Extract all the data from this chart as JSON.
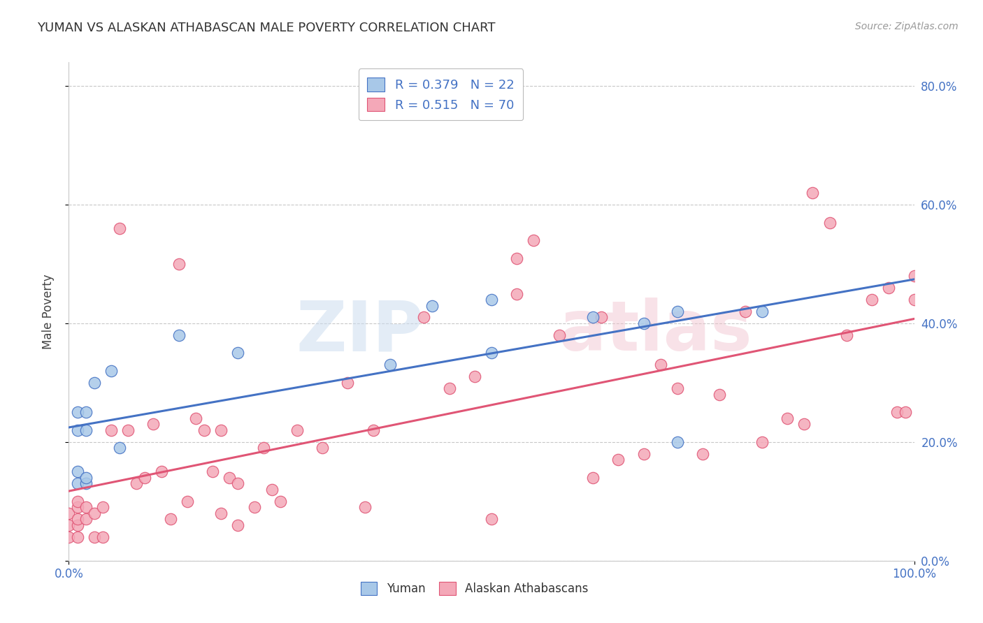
{
  "title": "YUMAN VS ALASKAN ATHABASCAN MALE POVERTY CORRELATION CHART",
  "source": "Source: ZipAtlas.com",
  "ylabel": "Male Poverty",
  "xlim": [
    0,
    1
  ],
  "ylim": [
    0,
    0.84
  ],
  "ytick_values": [
    0,
    0.2,
    0.4,
    0.6,
    0.8
  ],
  "ytick_labels": [
    "0.0%",
    "20.0%",
    "40.0%",
    "60.0%",
    "80.0%"
  ],
  "color_yuman": "#a8c8e8",
  "color_alaskan": "#f4a8b8",
  "line_color_yuman": "#4472c4",
  "line_color_alaskan": "#e05575",
  "yuman_x": [
    0.01,
    0.01,
    0.01,
    0.01,
    0.02,
    0.02,
    0.02,
    0.02,
    0.03,
    0.05,
    0.06,
    0.13,
    0.2,
    0.38,
    0.43,
    0.5,
    0.5,
    0.62,
    0.68,
    0.72,
    0.72,
    0.82
  ],
  "yuman_y": [
    0.13,
    0.15,
    0.22,
    0.25,
    0.13,
    0.14,
    0.22,
    0.25,
    0.3,
    0.32,
    0.19,
    0.38,
    0.35,
    0.33,
    0.43,
    0.35,
    0.44,
    0.41,
    0.4,
    0.2,
    0.42,
    0.42
  ],
  "alaskan_x": [
    0.0,
    0.0,
    0.0,
    0.01,
    0.01,
    0.01,
    0.01,
    0.01,
    0.02,
    0.02,
    0.03,
    0.03,
    0.04,
    0.04,
    0.05,
    0.07,
    0.08,
    0.09,
    0.1,
    0.11,
    0.12,
    0.14,
    0.15,
    0.16,
    0.17,
    0.18,
    0.18,
    0.19,
    0.2,
    0.2,
    0.22,
    0.23,
    0.24,
    0.25,
    0.27,
    0.3,
    0.33,
    0.36,
    0.42,
    0.45,
    0.48,
    0.5,
    0.53,
    0.53,
    0.55,
    0.58,
    0.62,
    0.63,
    0.65,
    0.68,
    0.7,
    0.72,
    0.75,
    0.77,
    0.8,
    0.82,
    0.85,
    0.87,
    0.88,
    0.9,
    0.92,
    0.95,
    0.97,
    0.98,
    0.99,
    1.0,
    1.0,
    0.06,
    0.13,
    0.35
  ],
  "alaskan_y": [
    0.04,
    0.06,
    0.08,
    0.04,
    0.06,
    0.07,
    0.09,
    0.1,
    0.07,
    0.09,
    0.04,
    0.08,
    0.04,
    0.09,
    0.22,
    0.22,
    0.13,
    0.14,
    0.23,
    0.15,
    0.07,
    0.1,
    0.24,
    0.22,
    0.15,
    0.08,
    0.22,
    0.14,
    0.06,
    0.13,
    0.09,
    0.19,
    0.12,
    0.1,
    0.22,
    0.19,
    0.3,
    0.22,
    0.41,
    0.29,
    0.31,
    0.07,
    0.51,
    0.45,
    0.54,
    0.38,
    0.14,
    0.41,
    0.17,
    0.18,
    0.33,
    0.29,
    0.18,
    0.28,
    0.42,
    0.2,
    0.24,
    0.23,
    0.62,
    0.57,
    0.38,
    0.44,
    0.46,
    0.25,
    0.25,
    0.48,
    0.44,
    0.56,
    0.5,
    0.09
  ],
  "background_color": "#ffffff",
  "grid_color": "#c8c8c8"
}
